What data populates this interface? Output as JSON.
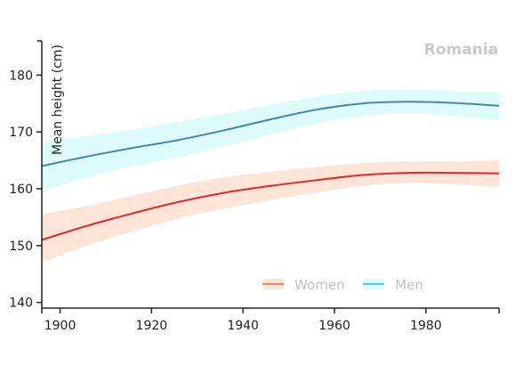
{
  "chart_data": {
    "type": "line",
    "title": "Romania",
    "ylabel": "Mean height (cm)",
    "xlabel": "",
    "xlim": [
      1896,
      1996
    ],
    "ylim": [
      139,
      186
    ],
    "x_ticks": [
      1900,
      1920,
      1940,
      1960,
      1980
    ],
    "y_ticks": [
      140,
      150,
      160,
      170,
      180
    ],
    "grid": false,
    "legend_position": "bottom-right",
    "colors": {
      "women_line": "#e8262a",
      "women_band": "#fce5d6",
      "women_legend": "#e88a68",
      "men_line": "#4d85a8",
      "men_band": "#ddfbfb",
      "men_legend": "#55cfd8"
    },
    "x": [
      1896,
      1906,
      1916,
      1926,
      1936,
      1946,
      1956,
      1966,
      1976,
      1986,
      1996
    ],
    "series": [
      {
        "name": "Women",
        "values": [
          151.0,
          153.5,
          155.7,
          157.7,
          159.3,
          160.5,
          161.5,
          162.4,
          162.8,
          162.8,
          162.7
        ],
        "lower": [
          147.0,
          150.0,
          152.5,
          154.8,
          156.5,
          158.0,
          159.3,
          160.5,
          161.0,
          160.8,
          160.3
        ],
        "upper": [
          155.5,
          157.0,
          158.8,
          160.6,
          162.0,
          163.0,
          163.8,
          164.5,
          164.8,
          164.8,
          165.0
        ]
      },
      {
        "name": "Men",
        "values": [
          164.0,
          165.7,
          167.2,
          168.6,
          170.3,
          172.2,
          173.9,
          175.0,
          175.3,
          175.1,
          174.6
        ],
        "lower": [
          159.5,
          162.0,
          164.0,
          165.6,
          167.5,
          169.5,
          171.5,
          172.8,
          173.3,
          172.8,
          172.0
        ],
        "upper": [
          168.2,
          169.3,
          170.4,
          171.8,
          173.2,
          174.8,
          176.2,
          177.2,
          177.5,
          177.2,
          176.9
        ]
      }
    ]
  }
}
